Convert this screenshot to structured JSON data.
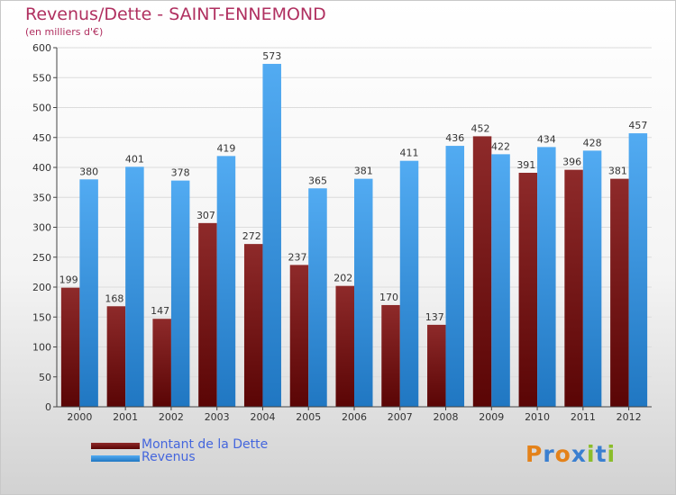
{
  "title": "Revenus/Dette - SAINT-ENNEMOND",
  "subtitle": "(en milliers d'€)",
  "logo": {
    "text": "Proxiti",
    "letter_colors": [
      "#e4821a",
      "#3a7fd0",
      "#e4821a",
      "#3a7fd0",
      "#8bbd2a",
      "#3a7fd0",
      "#8bbd2a"
    ]
  },
  "colors": {
    "dette": "#7a1a1a",
    "revenus": "#3d9be9",
    "axis_text": "#333333"
  },
  "chart_data": {
    "type": "bar",
    "title": "Revenus/Dette - SAINT-ENNEMOND",
    "subtitle": "(en milliers d'€)",
    "categories": [
      "2000",
      "2001",
      "2002",
      "2003",
      "2004",
      "2005",
      "2006",
      "2007",
      "2008",
      "2009",
      "2010",
      "2011",
      "2012"
    ],
    "series": [
      {
        "name": "Montant de la Dette",
        "values": [
          199,
          168,
          147,
          307,
          272,
          237,
          202,
          170,
          137,
          452,
          391,
          396,
          381
        ]
      },
      {
        "name": "Revenus",
        "values": [
          380,
          401,
          378,
          419,
          573,
          365,
          381,
          411,
          436,
          422,
          434,
          428,
          457
        ]
      }
    ],
    "ylim": [
      0,
      600
    ],
    "yticks": [
      0,
      50,
      100,
      150,
      200,
      250,
      300,
      350,
      400,
      450,
      500,
      550,
      600
    ],
    "grid": true,
    "legend_position": "bottom-left"
  }
}
